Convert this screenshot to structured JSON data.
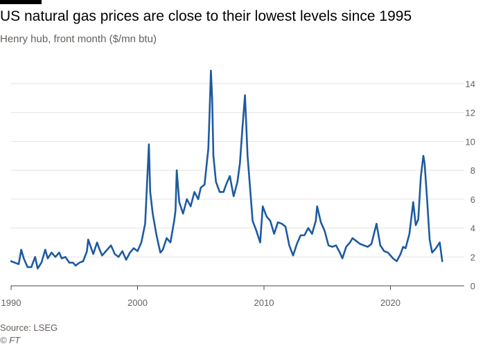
{
  "title": "US natural gas prices are close to their lowest levels since 1995",
  "subtitle": "Henry hub, front month ($/mn btu)",
  "source": "Source: LSEG",
  "credit": "© FT",
  "colors": {
    "line": "#1d5aa0",
    "grid": "#e6e3df",
    "axis": "#4a4540"
  },
  "chart_data": {
    "type": "line",
    "title": "US natural gas prices are close to their lowest levels since 1995",
    "subtitle": "Henry hub, front month ($/mn btu)",
    "xlabel": "",
    "ylabel": "",
    "xlim": [
      1990,
      2024.3
    ],
    "ylim": [
      0,
      15
    ],
    "x_ticks": [
      1990,
      2000,
      2010,
      2020
    ],
    "y_ticks": [
      0,
      2,
      4,
      6,
      8,
      10,
      12,
      14
    ],
    "y_axis_side": "right",
    "grid": "horizontal",
    "legend": "none",
    "series": [
      {
        "x": [
          1990.0,
          1990.3,
          1990.6,
          1990.8,
          1991.0,
          1991.3,
          1991.6,
          1991.9,
          1992.1,
          1992.4,
          1992.7,
          1992.9,
          1993.2,
          1993.5,
          1993.8,
          1994.0,
          1994.3,
          1994.6,
          1994.9,
          1995.1,
          1995.4,
          1995.7,
          1996.0,
          1996.1,
          1996.5,
          1996.8,
          1997.0,
          1997.2,
          1997.5,
          1997.9,
          1998.2,
          1998.5,
          1998.8,
          1999.1,
          1999.4,
          1999.7,
          2000.0,
          2000.3,
          2000.6,
          2000.9,
          2001.0,
          2001.2,
          2001.5,
          2001.8,
          2002.0,
          2002.3,
          2002.6,
          2002.9,
          2003.0,
          2003.1,
          2003.3,
          2003.6,
          2003.9,
          2004.2,
          2004.5,
          2004.8,
          2005.0,
          2005.3,
          2005.6,
          2005.7,
          2005.8,
          2005.9,
          2006.0,
          2006.2,
          2006.5,
          2006.8,
          2007.0,
          2007.3,
          2007.6,
          2007.9,
          2008.1,
          2008.3,
          2008.5,
          2008.7,
          2008.9,
          2009.1,
          2009.4,
          2009.7,
          2009.9,
          2010.2,
          2010.5,
          2010.8,
          2011.1,
          2011.4,
          2011.7,
          2012.0,
          2012.3,
          2012.6,
          2012.9,
          2013.2,
          2013.5,
          2013.8,
          2014.1,
          2014.2,
          2014.5,
          2014.8,
          2015.1,
          2015.4,
          2015.7,
          2016.0,
          2016.2,
          2016.5,
          2016.8,
          2017.0,
          2017.3,
          2017.6,
          2017.9,
          2018.2,
          2018.5,
          2018.9,
          2019.2,
          2019.5,
          2019.8,
          2020.2,
          2020.5,
          2020.8,
          2021.0,
          2021.2,
          2021.5,
          2021.8,
          2022.0,
          2022.2,
          2022.4,
          2022.6,
          2022.7,
          2022.9,
          2023.1,
          2023.3,
          2023.6,
          2023.9,
          2024.1
        ],
        "values": [
          1.7,
          1.6,
          1.5,
          2.5,
          1.9,
          1.3,
          1.3,
          2.0,
          1.2,
          1.6,
          2.5,
          1.9,
          2.3,
          2.0,
          2.3,
          1.9,
          2.0,
          1.6,
          1.6,
          1.4,
          1.6,
          1.7,
          2.4,
          3.2,
          2.2,
          3.0,
          2.5,
          2.1,
          2.4,
          2.8,
          2.2,
          2.0,
          2.4,
          1.8,
          2.3,
          2.6,
          2.4,
          3.0,
          4.3,
          9.8,
          6.5,
          5.0,
          3.5,
          2.3,
          2.5,
          3.3,
          3.0,
          4.5,
          5.2,
          8.0,
          5.8,
          5.0,
          6.0,
          5.5,
          6.5,
          6.0,
          6.8,
          7.0,
          9.5,
          12.0,
          14.9,
          13.0,
          9.0,
          7.2,
          6.5,
          6.5,
          7.0,
          7.6,
          6.2,
          7.2,
          8.5,
          11.0,
          13.2,
          9.0,
          6.8,
          4.5,
          3.8,
          3.0,
          5.5,
          4.8,
          4.5,
          3.6,
          4.4,
          4.3,
          4.1,
          2.8,
          2.1,
          2.9,
          3.5,
          3.5,
          4.0,
          3.6,
          4.5,
          5.5,
          4.4,
          3.8,
          2.8,
          2.7,
          2.8,
          2.3,
          1.9,
          2.7,
          3.0,
          3.3,
          3.1,
          2.9,
          2.8,
          2.7,
          2.9,
          4.3,
          2.8,
          2.4,
          2.3,
          1.9,
          1.7,
          2.2,
          2.7,
          2.6,
          3.6,
          5.8,
          4.2,
          4.6,
          7.5,
          9.0,
          8.5,
          6.0,
          3.2,
          2.3,
          2.6,
          3.0,
          1.7
        ]
      }
    ]
  }
}
